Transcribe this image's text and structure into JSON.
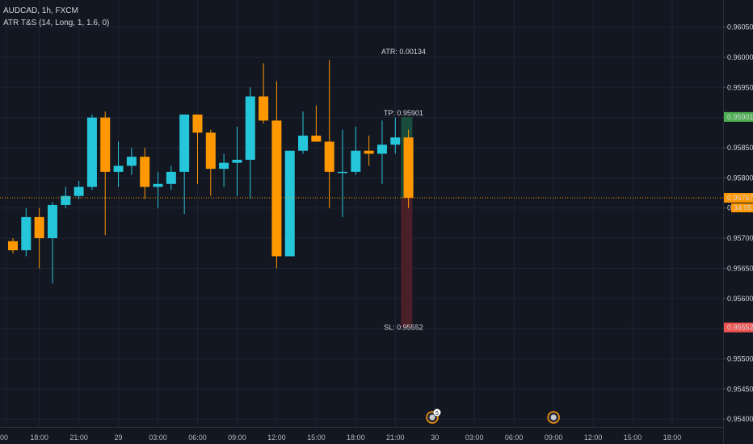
{
  "header": {
    "symbol_line": "AUDCAD, 1h, FXCM",
    "indicator_line": "ATR T&S (14, Long, 1, 1.6, 0)"
  },
  "colors": {
    "background": "#131722",
    "up": "#26c6da",
    "down": "#ff9800",
    "grid": "#1f2433",
    "current_price_line": "#ff9800",
    "tp_zone": "#1b4b3a",
    "sl_zone": "#4a2028",
    "tp_badge": "#4caf50",
    "sl_badge": "#ef5350"
  },
  "chart_data": {
    "type": "candlestick",
    "y_ticks": [
      "0.960500",
      "0.960000",
      "0.959500",
      "0.959000",
      "0.958500",
      "0.958000",
      "0.957500",
      "0.957000",
      "0.956500",
      "0.956000",
      "0.955500",
      "0.955000",
      "0.954500",
      "0.954000"
    ],
    "ylim": [
      0.95385,
      0.96085
    ],
    "x_ticks": [
      {
        "bar": -0.5,
        "label": "00"
      },
      {
        "bar": 2,
        "label": "18:00"
      },
      {
        "bar": 5,
        "label": "21:00"
      },
      {
        "bar": 8,
        "label": "29"
      },
      {
        "bar": 11,
        "label": "03:00"
      },
      {
        "bar": 14,
        "label": "06:00"
      },
      {
        "bar": 17,
        "label": "09:00"
      },
      {
        "bar": 20,
        "label": "12:00"
      },
      {
        "bar": 23,
        "label": "15:00"
      },
      {
        "bar": 26,
        "label": "18:00"
      },
      {
        "bar": 29,
        "label": "21:00"
      },
      {
        "bar": 32,
        "label": "30"
      },
      {
        "bar": 35,
        "label": "03:00"
      },
      {
        "bar": 38,
        "label": "06:00"
      },
      {
        "bar": 41,
        "label": "09:00"
      },
      {
        "bar": 44,
        "label": "12:00"
      },
      {
        "bar": 47,
        "label": "15:00"
      },
      {
        "bar": 50,
        "label": "18:00"
      }
    ],
    "candles": [
      {
        "o": 0.95695,
        "h": 0.957,
        "l": 0.95675,
        "c": 0.9568
      },
      {
        "o": 0.9568,
        "h": 0.9575,
        "l": 0.9567,
        "c": 0.95735
      },
      {
        "o": 0.95735,
        "h": 0.9575,
        "l": 0.9565,
        "c": 0.957
      },
      {
        "o": 0.957,
        "h": 0.9576,
        "l": 0.95625,
        "c": 0.95755
      },
      {
        "o": 0.95755,
        "h": 0.95785,
        "l": 0.9575,
        "c": 0.9577
      },
      {
        "o": 0.9577,
        "h": 0.95795,
        "l": 0.95765,
        "c": 0.95785
      },
      {
        "o": 0.95785,
        "h": 0.95905,
        "l": 0.9578,
        "c": 0.959
      },
      {
        "o": 0.959,
        "h": 0.9591,
        "l": 0.95705,
        "c": 0.9581
      },
      {
        "o": 0.9581,
        "h": 0.9586,
        "l": 0.95785,
        "c": 0.9582
      },
      {
        "o": 0.9582,
        "h": 0.9585,
        "l": 0.95805,
        "c": 0.95835
      },
      {
        "o": 0.95835,
        "h": 0.9585,
        "l": 0.95765,
        "c": 0.95785
      },
      {
        "o": 0.95785,
        "h": 0.9581,
        "l": 0.9575,
        "c": 0.9579
      },
      {
        "o": 0.9579,
        "h": 0.9582,
        "l": 0.9578,
        "c": 0.9581
      },
      {
        "o": 0.9581,
        "h": 0.95905,
        "l": 0.9574,
        "c": 0.95905
      },
      {
        "o": 0.95905,
        "h": 0.95905,
        "l": 0.9579,
        "c": 0.95875
      },
      {
        "o": 0.95875,
        "h": 0.9588,
        "l": 0.9577,
        "c": 0.95815
      },
      {
        "o": 0.95815,
        "h": 0.9584,
        "l": 0.95785,
        "c": 0.95825
      },
      {
        "o": 0.95825,
        "h": 0.95885,
        "l": 0.9577,
        "c": 0.9583
      },
      {
        "o": 0.9583,
        "h": 0.9595,
        "l": 0.95765,
        "c": 0.95935
      },
      {
        "o": 0.95935,
        "h": 0.9599,
        "l": 0.9589,
        "c": 0.95895
      },
      {
        "o": 0.95895,
        "h": 0.9596,
        "l": 0.9565,
        "c": 0.9567
      },
      {
        "o": 0.9567,
        "h": 0.95845,
        "l": 0.9567,
        "c": 0.95845
      },
      {
        "o": 0.95845,
        "h": 0.9591,
        "l": 0.9584,
        "c": 0.9587
      },
      {
        "o": 0.9587,
        "h": 0.9592,
        "l": 0.9586,
        "c": 0.9586
      },
      {
        "o": 0.9586,
        "h": 0.95995,
        "l": 0.9575,
        "c": 0.9581
      },
      {
        "o": 0.9581,
        "h": 0.9588,
        "l": 0.95735,
        "c": 0.9581
      },
      {
        "o": 0.9581,
        "h": 0.95885,
        "l": 0.95805,
        "c": 0.95845
      },
      {
        "o": 0.95845,
        "h": 0.9587,
        "l": 0.9582,
        "c": 0.9584
      },
      {
        "o": 0.9584,
        "h": 0.95895,
        "l": 0.9579,
        "c": 0.95855
      },
      {
        "o": 0.95855,
        "h": 0.959,
        "l": 0.9584,
        "c": 0.95867
      },
      {
        "o": 0.95867,
        "h": 0.9588,
        "l": 0.9575,
        "c": 0.95767
      }
    ],
    "current_price": 0.95767,
    "position": {
      "bar": 29.5,
      "entry": 0.95767,
      "tp": 0.95901,
      "sl": 0.95552
    },
    "annotations": {
      "atr": "ATR: 0.00134",
      "tp": "TP: 0.95901",
      "sl": "SL: 0.95552"
    },
    "price_badges": {
      "tp": "0.959011",
      "current": "0.957670",
      "countdown": "34:05",
      "sl": "0.955524"
    },
    "event_markers": [
      {
        "bar": 31.8,
        "badge": "5"
      },
      {
        "bar": 41
      }
    ]
  }
}
